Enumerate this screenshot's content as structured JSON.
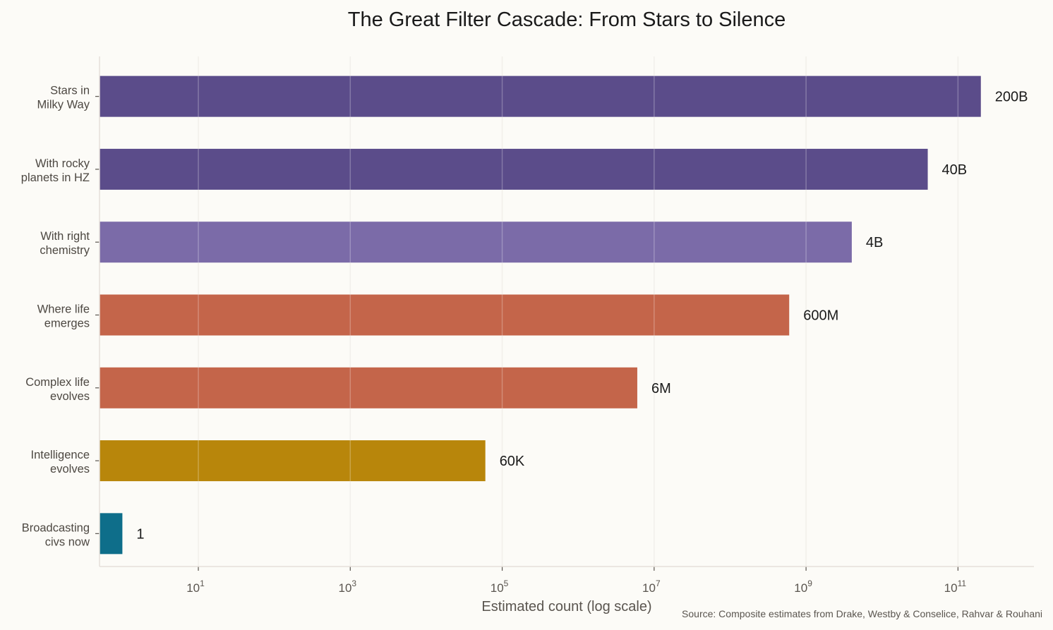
{
  "chart_data": {
    "type": "bar",
    "orientation": "horizontal",
    "title": "The Great Filter Cascade: From Stars to Silence",
    "xlabel": "Estimated count (log scale)",
    "ylabel": "",
    "xscale": "log",
    "xlim": [
      0.5,
      1000000000000
    ],
    "grid": "vertical",
    "categories": [
      [
        "Stars in",
        "Milky Way"
      ],
      [
        "With rocky",
        "planets in HZ"
      ],
      [
        "With right",
        "chemistry"
      ],
      [
        "Where life",
        "emerges"
      ],
      [
        "Complex life",
        "evolves"
      ],
      [
        "Intelligence",
        "evolves"
      ],
      [
        "Broadcasting",
        "civs now"
      ]
    ],
    "values": [
      200000000000,
      40000000000,
      4000000000,
      600000000,
      6000000,
      60000,
      1
    ],
    "data_labels": [
      "200B",
      "40B",
      "4B",
      "600M",
      "6M",
      "60K",
      "1"
    ],
    "colors": [
      "#5B4C8A",
      "#5B4C8A",
      "#7B6BA8",
      "#C4654A",
      "#C4654A",
      "#B8860B",
      "#0E6E8A"
    ],
    "xticks": [
      1,
      3,
      5,
      7,
      9,
      11
    ],
    "xtick_labels": [
      "10",
      "10",
      "10",
      "10",
      "10",
      "10"
    ],
    "source": "Source: Composite estimates from Drake, Westby & Conselice, Rahvar & Rouhani"
  },
  "background": "#FCFBF7"
}
